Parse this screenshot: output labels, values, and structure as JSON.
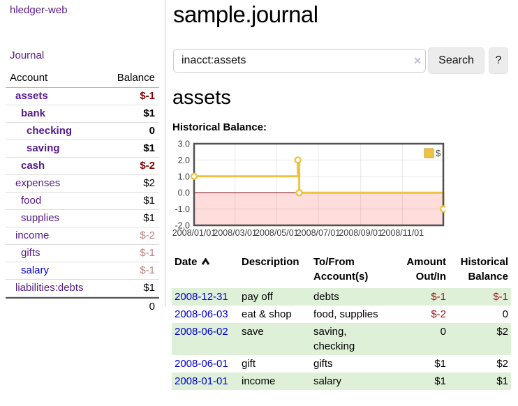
{
  "app": {
    "title": "hledger-web"
  },
  "nav": {
    "journal_label": "Journal"
  },
  "colors": {
    "link_purple": "#551a8b",
    "link_blue": "#0000e0",
    "negative_strong": "#8b0000",
    "negative_muted": "#bd7e7e",
    "row_green": "#dff0d8",
    "chart_series_gold": "#EDC240",
    "chart_negative_region": "#f8d0d0",
    "chart_zero_line": "#7a0000"
  },
  "sidebar": {
    "header": {
      "account": "Account",
      "balance": "Balance"
    },
    "rows": [
      {
        "name": "assets",
        "balance": "$-1",
        "depth": 1,
        "bold": true,
        "bcolor": "neg"
      },
      {
        "name": "bank",
        "balance": "$1",
        "depth": 2,
        "bold": true,
        "bcolor": "pos"
      },
      {
        "name": "checking",
        "balance": "0",
        "depth": 3,
        "bold": true,
        "bcolor": "pos"
      },
      {
        "name": "saving",
        "balance": "$1",
        "depth": 3,
        "bold": true,
        "bcolor": "pos"
      },
      {
        "name": "cash",
        "balance": "$-2",
        "depth": 2,
        "bold": true,
        "bcolor": "neg"
      },
      {
        "name": "expenses",
        "balance": "$2",
        "depth": 1,
        "bold": false,
        "bcolor": "pos"
      },
      {
        "name": "food",
        "balance": "$1",
        "depth": 2,
        "bold": false,
        "bcolor": "pos"
      },
      {
        "name": "supplies",
        "balance": "$1",
        "depth": 2,
        "bold": false,
        "bcolor": "pos"
      },
      {
        "name": "income",
        "balance": "$-2",
        "depth": 1,
        "bold": false,
        "bcolor": "negmuted"
      },
      {
        "name": "gifts",
        "balance": "$-1",
        "depth": 2,
        "bold": false,
        "bcolor": "negmuted"
      },
      {
        "name": "salary",
        "balance": "$-1",
        "depth": 2,
        "bold": false,
        "bcolor": "negmuted",
        "link": "blue"
      },
      {
        "name": "liabilities:debts",
        "balance": "$1",
        "depth": 1,
        "bold": false,
        "bcolor": "pos"
      }
    ],
    "total": "0"
  },
  "header": {
    "title": "sample.journal"
  },
  "search": {
    "value": "inacct:assets",
    "clear_icon": "×",
    "button_label": "Search",
    "help_label": "?"
  },
  "account_page": {
    "title": "assets",
    "chart_label": "Historical Balance:"
  },
  "chart_data": {
    "type": "line",
    "title": "Historical Balance:",
    "step": true,
    "series": [
      {
        "name": "$",
        "color": "#EDC240",
        "points": [
          [
            "2008-01-01",
            1
          ],
          [
            "2008-06-01",
            2
          ],
          [
            "2008-06-03",
            0
          ],
          [
            "2008-12-31",
            -1
          ]
        ]
      }
    ],
    "x_range": [
      "2008-01-01",
      "2008-12-31"
    ],
    "ylim": [
      -2,
      3
    ],
    "y_ticks": [
      3.0,
      2.0,
      1.0,
      0.0,
      -1.0,
      -2.0
    ],
    "x_ticks": [
      "2008/01/01",
      "2008/03/01",
      "2008/05/01",
      "2008/07/01",
      "2008/09/01",
      "2008/11/01"
    ],
    "legend_position": "top-right",
    "legend_label": "$",
    "grid": true,
    "negative_region_fill": "#ffb4b4",
    "zero_line_color": "#7a0000"
  },
  "register": {
    "headers": [
      "Date",
      "Description",
      "To/From Account(s)",
      "Amount Out/In",
      "Historical Balance"
    ],
    "rows": [
      {
        "date": "2008-12-31",
        "description": "pay off",
        "accounts": "debts",
        "amount": "$-1",
        "balance": "$-1",
        "shade": true
      },
      {
        "date": "2008-06-03",
        "description": "eat & shop",
        "accounts": "food, supplies",
        "amount": "$-2",
        "balance": "0",
        "shade": false
      },
      {
        "date": "2008-06-02",
        "description": "save",
        "accounts": "saving, checking",
        "amount": "0",
        "balance": "$2",
        "shade": true
      },
      {
        "date": "2008-06-01",
        "description": "gift",
        "accounts": "gifts",
        "amount": "$1",
        "balance": "$2",
        "shade": false
      },
      {
        "date": "2008-01-01",
        "description": "income",
        "accounts": "salary",
        "amount": "$1",
        "balance": "$1",
        "shade": true
      }
    ]
  }
}
